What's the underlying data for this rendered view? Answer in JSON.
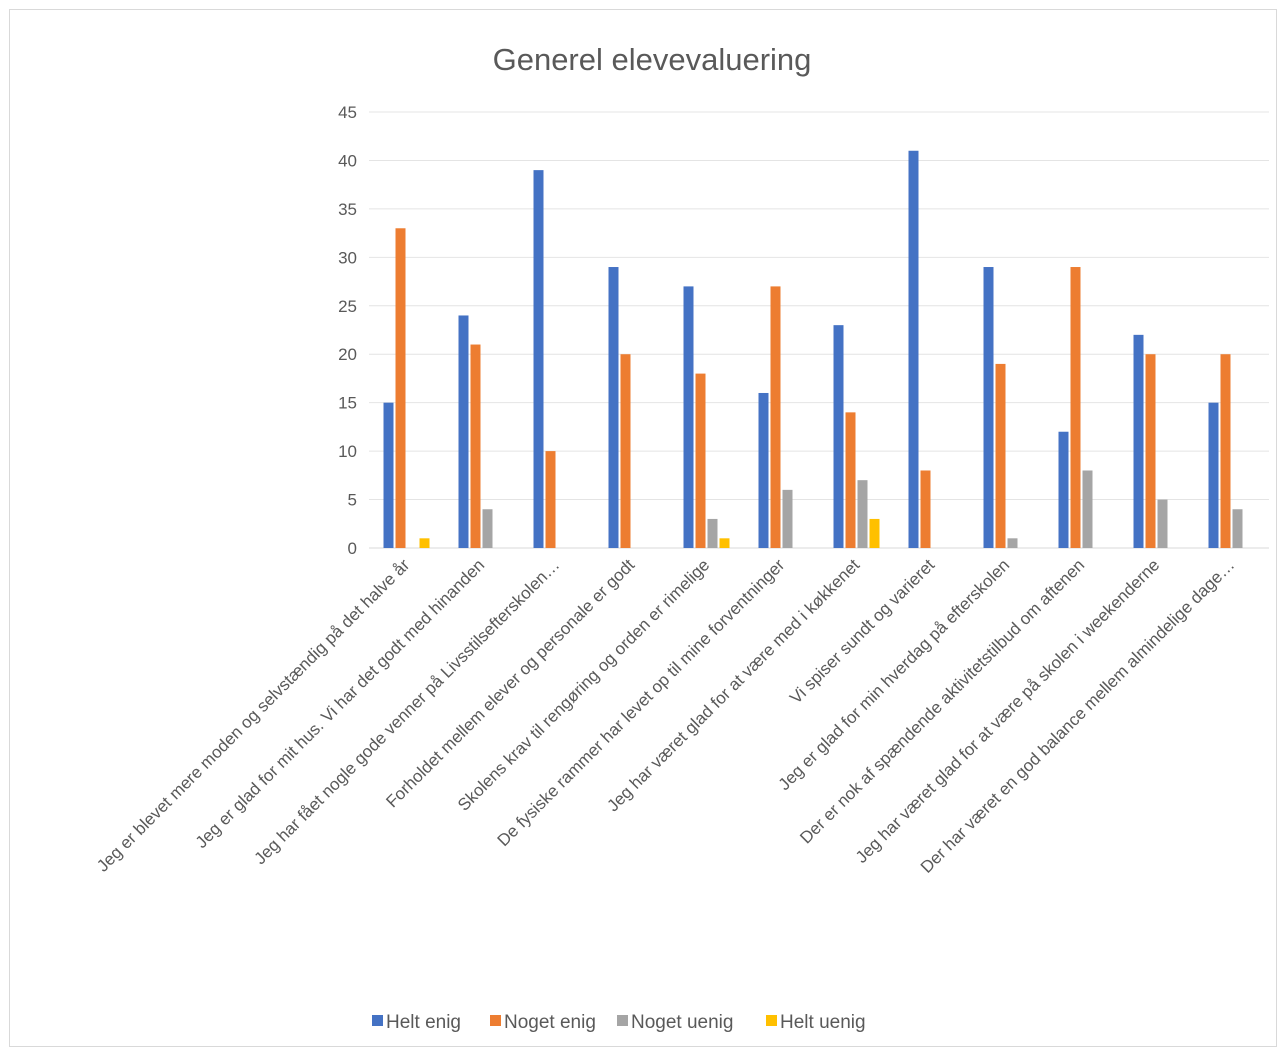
{
  "chart_data": {
    "type": "bar",
    "title": "Generel elevevaluering",
    "xlabel": "",
    "ylabel": "",
    "ylim": [
      0,
      45
    ],
    "yticks": [
      0,
      5,
      10,
      15,
      20,
      25,
      30,
      35,
      40,
      45
    ],
    "grid": true,
    "legend_position": "bottom",
    "categories": [
      "Jeg er blevet mere moden og selvstændig på det halve år",
      "Jeg er glad for mit hus. Vi har det godt med hinanden",
      "Jeg har fået nogle gode venner på Livsstilsefterskolen…",
      "Forholdet mellem elever og personale er godt",
      "Skolens krav til rengøring og orden er rimelige",
      "De fysiske rammer har levet op til mine forventninger",
      "Jeg har været glad for at være med i køkkenet",
      "Vi spiser sundt og varieret",
      "Jeg er glad for min hverdag på efterskolen",
      "Der er nok af spændende aktivitetstilbud om aftenen",
      "Jeg har været glad for at være på skolen i weekenderne",
      "Der har været en god balance mellem almindelige dage…"
    ],
    "series": [
      {
        "name": "Helt enig",
        "color": "#4472c4",
        "values": [
          15,
          24,
          39,
          29,
          27,
          16,
          23,
          41,
          29,
          12,
          22,
          15
        ]
      },
      {
        "name": "Noget enig",
        "color": "#ed7d31",
        "values": [
          33,
          21,
          10,
          20,
          18,
          27,
          14,
          8,
          19,
          29,
          20,
          20
        ]
      },
      {
        "name": "Noget uenig",
        "color": "#a5a5a5",
        "values": [
          0,
          4,
          0,
          0,
          3,
          6,
          7,
          0,
          1,
          8,
          5,
          4
        ]
      },
      {
        "name": "Helt uenig",
        "color": "#ffc000",
        "values": [
          1,
          0,
          0,
          0,
          1,
          0,
          3,
          0,
          0,
          0,
          0,
          0
        ]
      }
    ]
  }
}
